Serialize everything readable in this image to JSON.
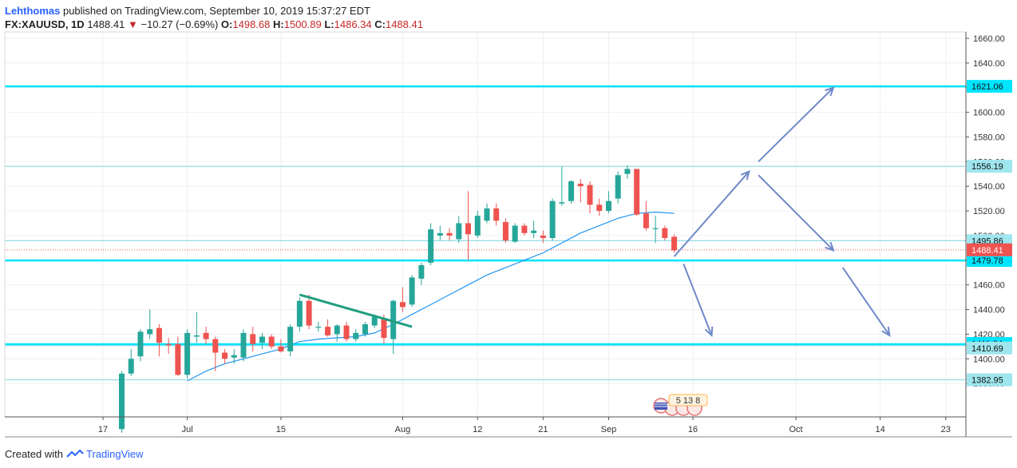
{
  "header": {
    "author": "Lehthomas",
    "published_text": "published on TradingView.com, September 10, 2019 15:37:27 EDT",
    "symbol": "FX:XAUUSD, 1D",
    "last": "1488.41",
    "down_arrow": "▼",
    "change": "−10.27 (−0.69%)",
    "o_label": "O:",
    "o": "1498.68",
    "h_label": "H:",
    "h": "1500.89",
    "l_label": "L:",
    "l": "1486.34",
    "c_label": "C:",
    "c": "1488.41"
  },
  "footer": {
    "created_with": "Created with",
    "brand": "TradingView"
  },
  "events_badge": "5 13 8",
  "colors": {
    "up": "#26a69a",
    "down": "#ef5350",
    "ma": "#2196f3",
    "level": "#00e5ff",
    "arrow": "#6f88c9",
    "trend": "#1f9e80"
  },
  "chart_data": {
    "type": "candlestick",
    "title": "",
    "ylim": [
      1362,
      1664
    ],
    "y_ticks": [
      "1660.00",
      "1640.00",
      "1620.00",
      "1600.00",
      "1580.00",
      "1560.00",
      "1540.00",
      "1520.00",
      "1500.00",
      "1480.00",
      "1460.00",
      "1440.00",
      "1420.00",
      "1400.00",
      "1380.00"
    ],
    "x_ticks": [
      {
        "label": "17",
        "index": -2
      },
      {
        "label": "Jul",
        "index": 7
      },
      {
        "label": "15",
        "index": 17
      },
      {
        "label": "Aug",
        "index": 30
      },
      {
        "label": "12",
        "index": 38
      },
      {
        "label": "21",
        "index": 45
      },
      {
        "label": "Sep",
        "index": 52
      },
      {
        "label": "16",
        "index": 61
      },
      {
        "label": "Oct",
        "index": 72
      },
      {
        "label": "14",
        "index": 81
      },
      {
        "label": "23",
        "index": 88
      }
    ],
    "candles": [
      {
        "o": 1343,
        "h": 1390,
        "l": 1340,
        "c": 1388
      },
      {
        "o": 1388,
        "h": 1408,
        "l": 1386,
        "c": 1400
      },
      {
        "o": 1402,
        "h": 1424,
        "l": 1398,
        "c": 1422
      },
      {
        "o": 1420,
        "h": 1440,
        "l": 1416,
        "c": 1424
      },
      {
        "o": 1425,
        "h": 1428,
        "l": 1402,
        "c": 1413
      },
      {
        "o": 1412,
        "h": 1417,
        "l": 1404,
        "c": 1411
      },
      {
        "o": 1412,
        "h": 1418,
        "l": 1386,
        "c": 1387
      },
      {
        "o": 1387,
        "h": 1424,
        "l": 1384,
        "c": 1421
      },
      {
        "o": 1418,
        "h": 1438,
        "l": 1413,
        "c": 1419
      },
      {
        "o": 1421,
        "h": 1426,
        "l": 1412,
        "c": 1416
      },
      {
        "o": 1416,
        "h": 1418,
        "l": 1390,
        "c": 1405
      },
      {
        "o": 1405,
        "h": 1408,
        "l": 1396,
        "c": 1400
      },
      {
        "o": 1401,
        "h": 1408,
        "l": 1396,
        "c": 1403
      },
      {
        "o": 1401,
        "h": 1424,
        "l": 1398,
        "c": 1421
      },
      {
        "o": 1420,
        "h": 1426,
        "l": 1406,
        "c": 1412
      },
      {
        "o": 1413,
        "h": 1421,
        "l": 1408,
        "c": 1418
      },
      {
        "o": 1418,
        "h": 1420,
        "l": 1408,
        "c": 1410
      },
      {
        "o": 1410,
        "h": 1416,
        "l": 1405,
        "c": 1406
      },
      {
        "o": 1406,
        "h": 1428,
        "l": 1402,
        "c": 1426
      },
      {
        "o": 1426,
        "h": 1450,
        "l": 1422,
        "c": 1447
      },
      {
        "o": 1447,
        "h": 1452,
        "l": 1424,
        "c": 1427
      },
      {
        "o": 1426,
        "h": 1430,
        "l": 1422,
        "c": 1426
      },
      {
        "o": 1426,
        "h": 1432,
        "l": 1418,
        "c": 1419
      },
      {
        "o": 1420,
        "h": 1428,
        "l": 1414,
        "c": 1427
      },
      {
        "o": 1427,
        "h": 1430,
        "l": 1414,
        "c": 1416
      },
      {
        "o": 1416,
        "h": 1424,
        "l": 1414,
        "c": 1421
      },
      {
        "o": 1420,
        "h": 1430,
        "l": 1418,
        "c": 1428
      },
      {
        "o": 1427,
        "h": 1436,
        "l": 1425,
        "c": 1434
      },
      {
        "o": 1432,
        "h": 1436,
        "l": 1412,
        "c": 1417
      },
      {
        "o": 1416,
        "h": 1448,
        "l": 1404,
        "c": 1447
      },
      {
        "o": 1446,
        "h": 1458,
        "l": 1438,
        "c": 1442
      },
      {
        "o": 1444,
        "h": 1468,
        "l": 1442,
        "c": 1466
      },
      {
        "o": 1465,
        "h": 1478,
        "l": 1460,
        "c": 1476
      },
      {
        "o": 1478,
        "h": 1510,
        "l": 1476,
        "c": 1505
      },
      {
        "o": 1500,
        "h": 1508,
        "l": 1496,
        "c": 1502
      },
      {
        "o": 1502,
        "h": 1506,
        "l": 1496,
        "c": 1500
      },
      {
        "o": 1497,
        "h": 1516,
        "l": 1494,
        "c": 1510
      },
      {
        "o": 1510,
        "h": 1536,
        "l": 1480,
        "c": 1501
      },
      {
        "o": 1500,
        "h": 1520,
        "l": 1498,
        "c": 1516
      },
      {
        "o": 1512,
        "h": 1526,
        "l": 1510,
        "c": 1522
      },
      {
        "o": 1522,
        "h": 1526,
        "l": 1508,
        "c": 1512
      },
      {
        "o": 1511,
        "h": 1514,
        "l": 1494,
        "c": 1496
      },
      {
        "o": 1495,
        "h": 1510,
        "l": 1494,
        "c": 1508
      },
      {
        "o": 1508,
        "h": 1510,
        "l": 1500,
        "c": 1502
      },
      {
        "o": 1502,
        "h": 1512,
        "l": 1498,
        "c": 1504
      },
      {
        "o": 1500,
        "h": 1504,
        "l": 1494,
        "c": 1498
      },
      {
        "o": 1498,
        "h": 1530,
        "l": 1496,
        "c": 1528
      },
      {
        "o": 1526,
        "h": 1556,
        "l": 1524,
        "c": 1527
      },
      {
        "o": 1528,
        "h": 1545,
        "l": 1526,
        "c": 1544
      },
      {
        "o": 1542,
        "h": 1546,
        "l": 1527,
        "c": 1540
      },
      {
        "o": 1541,
        "h": 1544,
        "l": 1518,
        "c": 1525
      },
      {
        "o": 1525,
        "h": 1530,
        "l": 1516,
        "c": 1520
      },
      {
        "o": 1520,
        "h": 1536,
        "l": 1518,
        "c": 1528
      },
      {
        "o": 1530,
        "h": 1552,
        "l": 1526,
        "c": 1549
      },
      {
        "o": 1550,
        "h": 1557,
        "l": 1546,
        "c": 1554
      },
      {
        "o": 1554,
        "h": 1554,
        "l": 1516,
        "c": 1517
      },
      {
        "o": 1518,
        "h": 1528,
        "l": 1504,
        "c": 1506
      },
      {
        "o": 1506,
        "h": 1516,
        "l": 1494,
        "c": 1506
      },
      {
        "o": 1506,
        "h": 1508,
        "l": 1496,
        "c": 1498
      },
      {
        "o": 1499,
        "h": 1501,
        "l": 1486,
        "c": 1488
      }
    ],
    "moving_average": [
      {
        "i": 7,
        "v": 1382
      },
      {
        "i": 9,
        "v": 1390
      },
      {
        "i": 11,
        "v": 1396
      },
      {
        "i": 13,
        "v": 1400
      },
      {
        "i": 15,
        "v": 1404
      },
      {
        "i": 17,
        "v": 1408
      },
      {
        "i": 19,
        "v": 1414
      },
      {
        "i": 21,
        "v": 1416
      },
      {
        "i": 23,
        "v": 1417
      },
      {
        "i": 25,
        "v": 1418
      },
      {
        "i": 27,
        "v": 1421
      },
      {
        "i": 29,
        "v": 1428
      },
      {
        "i": 31,
        "v": 1436
      },
      {
        "i": 33,
        "v": 1444
      },
      {
        "i": 35,
        "v": 1452
      },
      {
        "i": 37,
        "v": 1460
      },
      {
        "i": 39,
        "v": 1468
      },
      {
        "i": 41,
        "v": 1474
      },
      {
        "i": 43,
        "v": 1480
      },
      {
        "i": 45,
        "v": 1486
      },
      {
        "i": 47,
        "v": 1494
      },
      {
        "i": 49,
        "v": 1502
      },
      {
        "i": 51,
        "v": 1508
      },
      {
        "i": 53,
        "v": 1514
      },
      {
        "i": 55,
        "v": 1518
      },
      {
        "i": 57,
        "v": 1519
      },
      {
        "i": 59,
        "v": 1518
      }
    ],
    "levels": [
      {
        "value": 1621.06,
        "label": "1621.06",
        "style": "thick"
      },
      {
        "value": 1556.19,
        "label": "1556.19",
        "style": "thin"
      },
      {
        "value": 1495.86,
        "label": "1495.86",
        "style": "thin"
      },
      {
        "value": 1479.78,
        "label": "1479.78",
        "style": "thick"
      },
      {
        "value": 1411.84,
        "label": "1411.84",
        "style": "thick"
      },
      {
        "value": 1410.69,
        "label": "1410.69",
        "style": "thin"
      },
      {
        "value": 1382.95,
        "label": "1382.95",
        "style": "thin"
      }
    ],
    "last_price": {
      "value": 1488.41,
      "label": "1488.41"
    },
    "trendline": [
      {
        "i": 19,
        "v": 1452
      },
      {
        "i": 31,
        "v": 1426
      }
    ],
    "projection_arrows": [
      [
        {
          "i": 59,
          "v": 1483
        },
        {
          "i": 67,
          "v": 1552
        }
      ],
      [
        {
          "i": 68,
          "v": 1560
        },
        {
          "i": 76,
          "v": 1620
        }
      ],
      [
        {
          "i": 68,
          "v": 1549
        },
        {
          "i": 76,
          "v": 1488
        }
      ],
      [
        {
          "i": 60,
          "v": 1477
        },
        {
          "i": 63,
          "v": 1419
        }
      ],
      [
        {
          "i": 77,
          "v": 1474
        },
        {
          "i": 82,
          "v": 1419
        }
      ]
    ]
  }
}
